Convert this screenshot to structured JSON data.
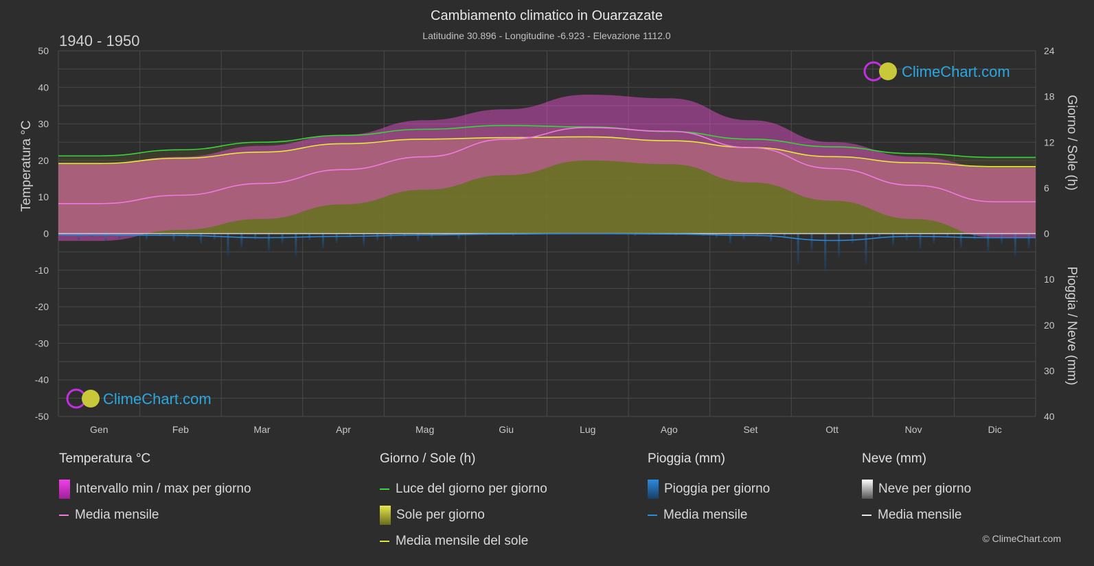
{
  "header": {
    "title": "Cambiamento climatico in Ouarzazate",
    "subtitle": "Latitudine 30.896 - Longitudine -6.923 - Elevazione 1112.0",
    "period": "1940 - 1950"
  },
  "brand": {
    "name": "ClimeChart.com",
    "copyright": "© ClimeChart.com"
  },
  "chart_data": {
    "type": "area",
    "categories": [
      "Gen",
      "Feb",
      "Mar",
      "Apr",
      "Mag",
      "Giu",
      "Lug",
      "Ago",
      "Set",
      "Ott",
      "Nov",
      "Dic"
    ],
    "axes": {
      "left": {
        "label": "Temperatura °C",
        "range": [
          -50,
          50
        ],
        "ticks": [
          50,
          40,
          30,
          20,
          10,
          0,
          -10,
          -20,
          -30,
          -40,
          -50
        ]
      },
      "right_top": {
        "label": "Giorno / Sole (h)",
        "range": [
          0,
          24
        ],
        "ticks": [
          24,
          18,
          12,
          6,
          0
        ]
      },
      "right_bottom": {
        "label": "Pioggia / Neve (mm)",
        "range": [
          0,
          40
        ],
        "ticks": [
          10,
          20,
          30,
          40
        ]
      }
    },
    "grid": true,
    "series": [
      {
        "name": "Luce del giorno per giorno",
        "axis": "right_top",
        "color": "#39d43a",
        "values": [
          10.2,
          11.0,
          12.0,
          12.9,
          13.7,
          14.2,
          14.0,
          13.4,
          12.4,
          11.4,
          10.5,
          10.0
        ]
      },
      {
        "name": "Media mensile del sole",
        "axis": "right_top",
        "color": "#d6d63a",
        "values": [
          9.2,
          9.9,
          10.7,
          11.8,
          12.4,
          12.6,
          12.7,
          12.2,
          11.3,
          10.1,
          9.3,
          8.8
        ]
      },
      {
        "name": "Media mensile",
        "axis": "left",
        "color": "#f07ae0",
        "values": [
          8.2,
          10.5,
          13.7,
          17.5,
          21.0,
          25.8,
          29.0,
          28.0,
          23.5,
          17.8,
          13.2,
          8.7
        ]
      },
      {
        "name": "Intervallo min / max per giorno",
        "axis": "left",
        "color": "#d946c9",
        "min": [
          -2,
          1,
          4,
          8,
          12,
          16,
          20,
          19,
          14,
          9,
          4,
          -1
        ],
        "max": [
          19,
          21,
          24,
          27,
          31,
          34,
          38,
          37,
          31,
          25,
          21,
          18
        ]
      },
      {
        "name": "Pioggia media mensile",
        "axis": "right_bottom",
        "color": "#2d86d6",
        "values": [
          0.3,
          0.4,
          0.9,
          0.6,
          0.3,
          0.1,
          0.0,
          0.1,
          0.4,
          1.5,
          0.6,
          0.9
        ]
      }
    ]
  },
  "legend": {
    "temperature": {
      "title": "Temperatura °C",
      "items": [
        {
          "label": "Intervallo min / max per giorno",
          "kind": "box",
          "color": "#e040d8"
        },
        {
          "label": "Media mensile",
          "kind": "line",
          "color": "#f07ae0"
        }
      ]
    },
    "sun": {
      "title": "Giorno / Sole (h)",
      "items": [
        {
          "label": "Luce del giorno per giorno",
          "kind": "line",
          "color": "#39d43a"
        },
        {
          "label": "Sole per giorno",
          "kind": "box",
          "color": "#d8d83a"
        },
        {
          "label": "Media mensile del sole",
          "kind": "line",
          "color": "#e0e040"
        }
      ]
    },
    "rain": {
      "title": "Pioggia (mm)",
      "items": [
        {
          "label": "Pioggia per giorno",
          "kind": "box",
          "color": "#2a8be0"
        },
        {
          "label": "Media mensile",
          "kind": "line",
          "color": "#2a8be0"
        }
      ]
    },
    "snow": {
      "title": "Neve (mm)",
      "items": [
        {
          "label": "Neve per giorno",
          "kind": "box",
          "color": "#d8d8d8"
        },
        {
          "label": "Media mensile",
          "kind": "line",
          "color": "#e8e8e8"
        }
      ]
    }
  }
}
